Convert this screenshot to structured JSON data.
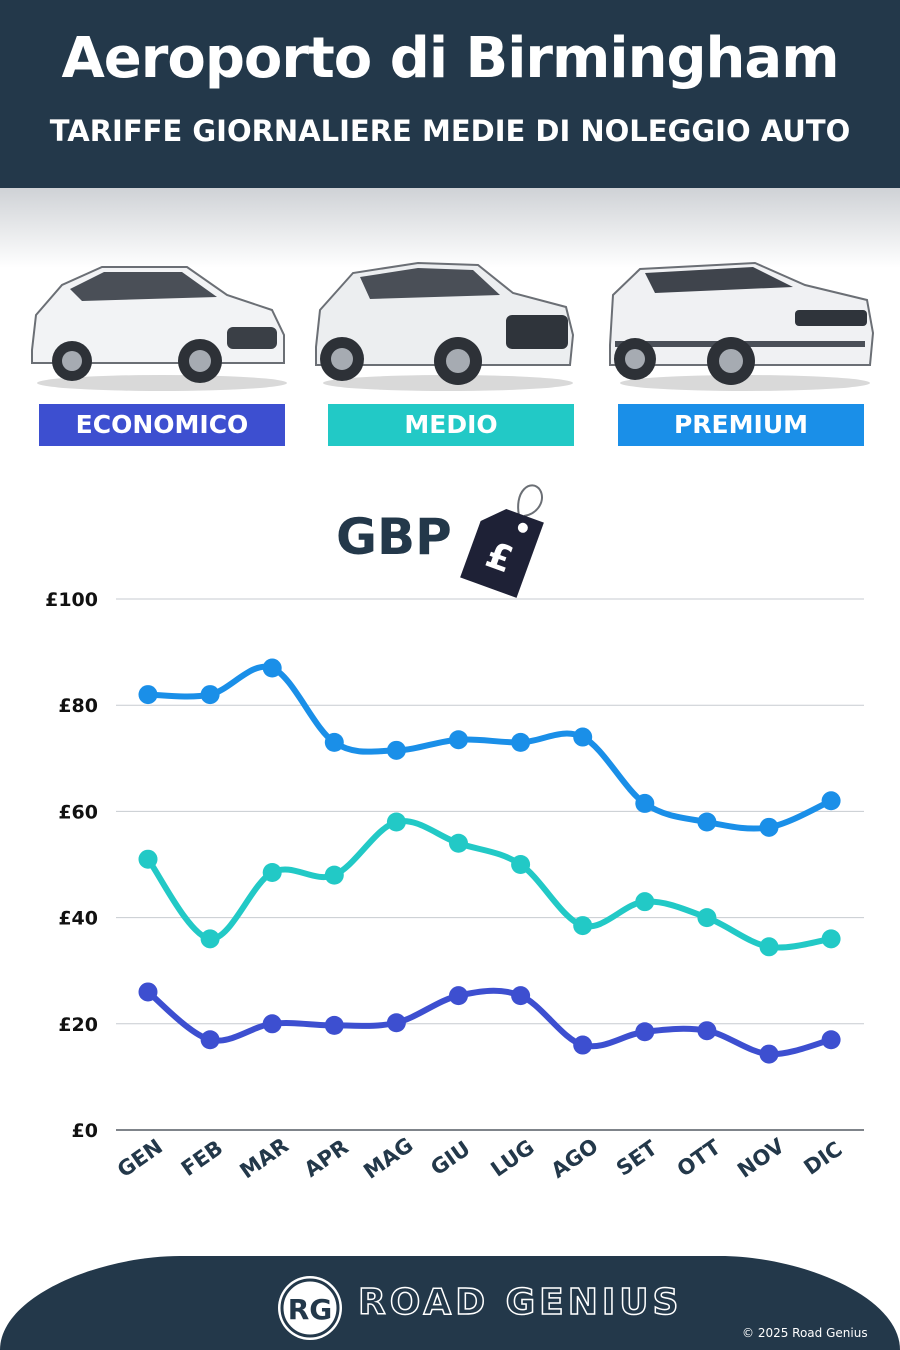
{
  "header": {
    "title": "Aeroporto di Birmingham",
    "subtitle": "TARIFFE GIORNALIERE MEDIE DI NOLEGGIO AUTO"
  },
  "categories": [
    {
      "label": "ECONOMICO",
      "color": "#3d4fd0"
    },
    {
      "label": "MEDIO",
      "color": "#22c9c6"
    },
    {
      "label": "PREMIUM",
      "color": "#1a8fe8"
    }
  ],
  "currency": {
    "label": "GBP",
    "symbol": "£",
    "icon": "price-tag-icon"
  },
  "chart_data": {
    "type": "line",
    "categories": [
      "GEN",
      "FEB",
      "MAR",
      "APR",
      "MAG",
      "GIU",
      "LUG",
      "AGO",
      "SET",
      "OTT",
      "NOV",
      "DIC"
    ],
    "series": [
      {
        "name": "PREMIUM",
        "color": "#1a8fe8",
        "values": [
          82,
          82,
          87,
          73,
          71.5,
          73.5,
          73,
          74,
          61.5,
          58,
          57,
          62
        ]
      },
      {
        "name": "MEDIO",
        "color": "#22c9c6",
        "values": [
          51,
          36,
          48.5,
          48,
          58,
          54,
          50,
          38.5,
          43,
          40,
          34.5,
          36
        ]
      },
      {
        "name": "ECONOMICO",
        "color": "#3d4fd0",
        "values": [
          26,
          17,
          20,
          19.7,
          20.2,
          25.3,
          25.3,
          16,
          18.5,
          18.7,
          14.3,
          17
        ]
      }
    ],
    "yticks": [
      "£0",
      "£20",
      "£40",
      "£60",
      "£80",
      "£100"
    ],
    "ylim": [
      0,
      100
    ],
    "grid": true
  },
  "footer": {
    "logo_text": "RG",
    "brand": "ROAD GENIUS",
    "copyright": "© 2025 Road Genius"
  }
}
